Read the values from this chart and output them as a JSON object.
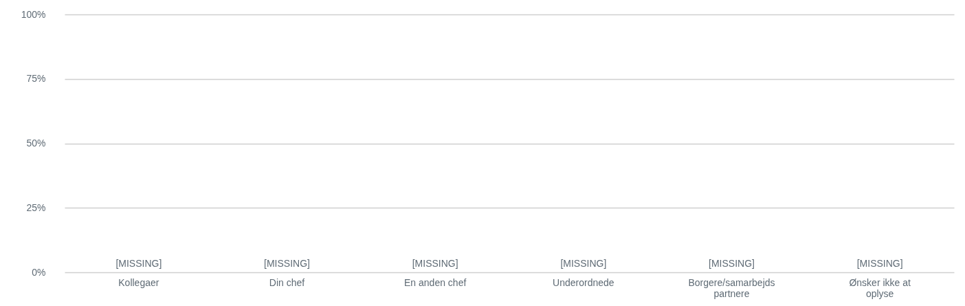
{
  "chart_data": {
    "type": "bar",
    "categories": [
      "Kollegaer",
      "Din chef",
      "En anden chef",
      "Underordnede",
      "Borgere/samarbejds partnere",
      "Ønsker ikke at oplyse"
    ],
    "values": [
      null,
      null,
      null,
      null,
      null,
      null
    ],
    "value_labels": [
      "[MISSING]",
      "[MISSING]",
      "[MISSING]",
      "[MISSING]",
      "[MISSING]",
      "[MISSING]"
    ],
    "ylim": [
      0,
      100
    ],
    "yticks": [
      {
        "value": 0,
        "label": "0%"
      },
      {
        "value": 25,
        "label": "25%"
      },
      {
        "value": 50,
        "label": "50%"
      },
      {
        "value": 75,
        "label": "75%"
      },
      {
        "value": 100,
        "label": "100%"
      }
    ],
    "grid": "y"
  }
}
